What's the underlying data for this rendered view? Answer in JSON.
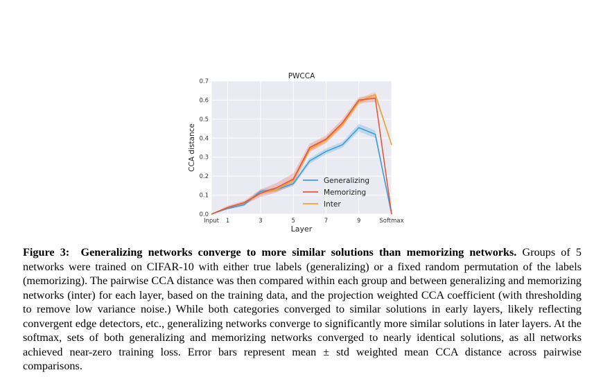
{
  "chart_data": {
    "type": "line",
    "title": "PWCCA",
    "xlabel": "Layer",
    "ylabel": "CCA distance",
    "xlim": [
      0,
      11
    ],
    "ylim": [
      0.0,
      0.7
    ],
    "x": [
      0,
      1,
      2,
      3,
      4,
      5,
      6,
      7,
      8,
      9,
      10,
      11
    ],
    "x_ticks": [
      {
        "x": 0,
        "label": "Input"
      },
      {
        "x": 1,
        "label": "1"
      },
      {
        "x": 3,
        "label": "3"
      },
      {
        "x": 5,
        "label": "5"
      },
      {
        "x": 7,
        "label": "7"
      },
      {
        "x": 9,
        "label": "9"
      },
      {
        "x": 11,
        "label": "Softmax"
      }
    ],
    "y_ticks": [
      {
        "y": 0.0,
        "label": "0.0"
      },
      {
        "y": 0.1,
        "label": "0.1"
      },
      {
        "y": 0.2,
        "label": "0.2"
      },
      {
        "y": 0.3,
        "label": "0.3"
      },
      {
        "y": 0.4,
        "label": "0.4"
      },
      {
        "y": 0.5,
        "label": "0.5"
      },
      {
        "y": 0.6,
        "label": "0.6"
      },
      {
        "y": 0.7,
        "label": "0.7"
      }
    ],
    "grid": true,
    "background": "#eaeaf2",
    "legend_position": "lower-right",
    "series": [
      {
        "name": "Generalizing",
        "color": "#3a9fd8",
        "values": [
          0.0,
          0.03,
          0.05,
          0.12,
          0.13,
          0.16,
          0.28,
          0.33,
          0.365,
          0.455,
          0.42,
          0.0
        ],
        "std": [
          0.0,
          0.005,
          0.008,
          0.01,
          0.01,
          0.012,
          0.015,
          0.015,
          0.015,
          0.02,
          0.02,
          0.005
        ]
      },
      {
        "name": "Memorizing",
        "color": "#e8553e",
        "values": [
          0.0,
          0.035,
          0.06,
          0.11,
          0.14,
          0.185,
          0.35,
          0.395,
          0.48,
          0.6,
          0.61,
          0.0
        ],
        "std": [
          0.0,
          0.01,
          0.01,
          0.02,
          0.025,
          0.03,
          0.02,
          0.02,
          0.02,
          0.015,
          0.02,
          0.005
        ]
      },
      {
        "name": "Inter",
        "color": "#f0a030",
        "values": [
          0.0,
          0.035,
          0.06,
          0.11,
          0.13,
          0.18,
          0.34,
          0.39,
          0.47,
          0.59,
          0.63,
          0.365
        ],
        "std": [
          0.0,
          0.005,
          0.008,
          0.01,
          0.01,
          0.012,
          0.015,
          0.015,
          0.015,
          0.015,
          0.015,
          0.01
        ]
      }
    ]
  },
  "caption": {
    "label": "Figure 3:",
    "heading": "Generalizing networks converge to more similar solutions than memorizing networks.",
    "body": "Groups of 5 networks were trained on CIFAR-10 with either true labels (generalizing) or a fixed random permutation of the labels (memorizing). The pairwise CCA distance was then compared within each group and between generalizing and memorizing networks (inter) for each layer, based on the training data, and the projection weighted CCA coefficient (with thresholding to remove low variance noise.) While both categories converged to similar solutions in early layers, likely reflecting convergent edge detectors, etc., generalizing networks converge to significantly more similar solutions in later layers. At the softmax, sets of both generalizing and memorizing networks converged to nearly identical solutions, as all networks achieved near-zero training loss. Error bars represent mean ± std weighted mean CCA distance across pairwise comparisons."
  }
}
